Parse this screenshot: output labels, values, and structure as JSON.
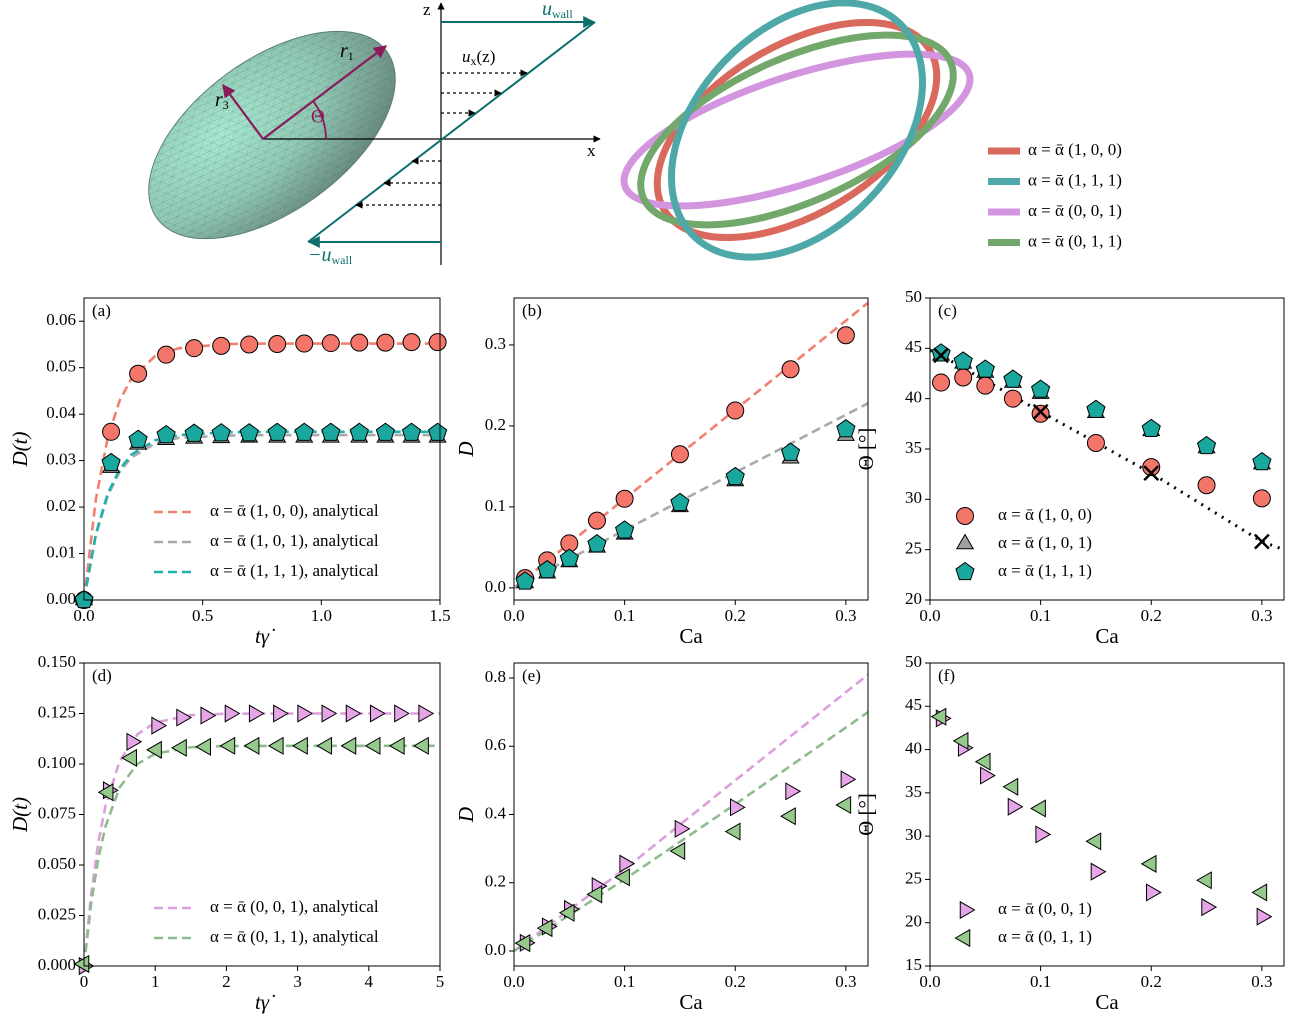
{
  "diagram": {
    "z_axis": "z",
    "x_axis": "x",
    "u_wall": {
      "symbol": "u",
      "subscript": "wall"
    },
    "minus_u_wall": {
      "symbol": "−u",
      "subscript": "wall"
    },
    "u_x": {
      "symbol": "u",
      "subscript": "x",
      "suffix": "(z)"
    },
    "r1": {
      "symbol": "r",
      "subscript": "1"
    },
    "r3": {
      "symbol": "r",
      "subscript": "3"
    },
    "theta": "Θ",
    "legend": [
      {
        "label": "α = ᾱ (1, 0, 0)",
        "color": "#d9695c"
      },
      {
        "label": "α = ᾱ (1, 1, 1)",
        "color": "#4fa8a8"
      },
      {
        "label": "α = ᾱ (0, 0, 1)",
        "color": "#d394e0"
      },
      {
        "label": "α = ᾱ (0, 1, 1)",
        "color": "#72a86c"
      }
    ]
  },
  "chart_data": [
    {
      "type": "scatter",
      "label": "(a)",
      "xlabel": "tγ̇",
      "ylabel": "D(t)",
      "xlim": [
        0,
        1.5
      ],
      "ylim": [
        0,
        0.065
      ],
      "xticks": [
        {
          "value": 0,
          "label": "0.0"
        },
        {
          "value": 0.5,
          "label": "0.5"
        },
        {
          "value": 1,
          "label": "1.0"
        },
        {
          "value": 1.5,
          "label": "1.5"
        }
      ],
      "yticks": [
        {
          "value": 0,
          "label": "0.00"
        },
        {
          "value": 0.01,
          "label": "0.01"
        },
        {
          "value": 0.02,
          "label": "0.02"
        },
        {
          "value": 0.03,
          "label": "0.03"
        },
        {
          "value": 0.04,
          "label": "0.04"
        },
        {
          "value": 0.05,
          "label": "0.05"
        },
        {
          "value": 0.06,
          "label": "0.06"
        }
      ],
      "legend": "lower right",
      "series": [
        {
          "name": "α = ᾱ (1, 0, 0), analytical",
          "style": "dashed",
          "color": "#f08070",
          "x": [
            0,
            0.05,
            0.1,
            0.15,
            0.2,
            0.3,
            0.4,
            0.6,
            0.8,
            1.0,
            1.2,
            1.5
          ],
          "values": [
            0,
            0.0217,
            0.0349,
            0.0429,
            0.0477,
            0.0525,
            0.0542,
            0.0551,
            0.0552,
            0.0552,
            0.0552,
            0.0552
          ]
        },
        {
          "name": "α = ᾱ (1, 0, 1), analytical",
          "style": "dashed",
          "color": "#aaaaaa",
          "x": [
            0,
            0.05,
            0.1,
            0.15,
            0.2,
            0.3,
            0.4,
            0.6,
            0.8,
            1.0,
            1.2,
            1.5
          ],
          "values": [
            0,
            0.014,
            0.0224,
            0.0276,
            0.0307,
            0.0337,
            0.0349,
            0.0354,
            0.0355,
            0.0355,
            0.0355,
            0.0355
          ]
        },
        {
          "name": "α = ᾱ (1, 1, 1), analytical",
          "style": "dashed",
          "color": "#20b2aa",
          "x": [
            0,
            0.05,
            0.1,
            0.15,
            0.2,
            0.3,
            0.4,
            0.6,
            0.8,
            1.0,
            1.2,
            1.5
          ],
          "values": [
            0,
            0.0142,
            0.0229,
            0.0281,
            0.0313,
            0.0344,
            0.0355,
            0.0361,
            0.0362,
            0.0362,
            0.0362,
            0.0362
          ]
        },
        {
          "marker": "circle",
          "color": "#f4766a",
          "x": [
            0,
            0.114,
            0.228,
            0.346,
            0.464,
            0.578,
            0.696,
            0.814,
            0.928,
            1.04,
            1.16,
            1.27,
            1.38,
            1.49
          ],
          "values": [
            0,
            0.0362,
            0.0487,
            0.0528,
            0.0542,
            0.0547,
            0.055,
            0.0551,
            0.0552,
            0.0553,
            0.0554,
            0.0554,
            0.0555,
            0.0555
          ]
        },
        {
          "marker": "triangle",
          "color": "#a0a0a0",
          "x": [
            0,
            0.114,
            0.228,
            0.346,
            0.464,
            0.578,
            0.696,
            0.814,
            0.928,
            1.04,
            1.16,
            1.27,
            1.38,
            1.49
          ],
          "values": [
            0,
            0.0285,
            0.0335,
            0.0345,
            0.0348,
            0.0349,
            0.035,
            0.035,
            0.035,
            0.035,
            0.035,
            0.035,
            0.035,
            0.035
          ]
        },
        {
          "marker": "pentagon",
          "color": "#1aa89e",
          "x": [
            0,
            0.114,
            0.228,
            0.346,
            0.464,
            0.578,
            0.696,
            0.814,
            0.928,
            1.04,
            1.16,
            1.27,
            1.38,
            1.49
          ],
          "values": [
            0,
            0.0295,
            0.0345,
            0.0355,
            0.0358,
            0.0359,
            0.0359,
            0.036,
            0.036,
            0.036,
            0.036,
            0.036,
            0.036,
            0.036
          ]
        }
      ]
    },
    {
      "type": "scatter",
      "label": "(b)",
      "xlabel": "Ca",
      "ylabel": "D",
      "xlim": [
        0,
        0.32
      ],
      "ylim": [
        -0.015,
        0.358
      ],
      "xticks": [
        {
          "value": 0,
          "label": "0.0"
        },
        {
          "value": 0.1,
          "label": "0.1"
        },
        {
          "value": 0.2,
          "label": "0.2"
        },
        {
          "value": 0.3,
          "label": "0.3"
        }
      ],
      "yticks": [
        {
          "value": 0,
          "label": "0.0"
        },
        {
          "value": 0.1,
          "label": "0.1"
        },
        {
          "value": 0.2,
          "label": "0.2"
        },
        {
          "value": 0.3,
          "label": "0.3"
        }
      ],
      "series": [
        {
          "style": "dashed",
          "color": "#f08070",
          "x": [
            0,
            0.32
          ],
          "values": [
            0,
            0.352
          ]
        },
        {
          "style": "dashed",
          "color": "#aaaaaa",
          "x": [
            0,
            0.32
          ],
          "values": [
            0,
            0.228
          ]
        },
        {
          "marker": "circle",
          "color": "#f4766a",
          "x": [
            0.01,
            0.03,
            0.05,
            0.075,
            0.1,
            0.15,
            0.2,
            0.25,
            0.3
          ],
          "values": [
            0.012,
            0.034,
            0.055,
            0.083,
            0.11,
            0.165,
            0.219,
            0.27,
            0.312
          ]
        },
        {
          "marker": "triangle",
          "color": "#a0a0a0",
          "x": [
            0.01,
            0.03,
            0.05,
            0.075,
            0.1,
            0.15,
            0.2,
            0.25,
            0.3
          ],
          "values": [
            0.006,
            0.018,
            0.032,
            0.05,
            0.066,
            0.1,
            0.132,
            0.16,
            0.188
          ]
        },
        {
          "marker": "pentagon",
          "color": "#1aa89e",
          "x": [
            0.01,
            0.03,
            0.05,
            0.075,
            0.1,
            0.15,
            0.2,
            0.25,
            0.3
          ],
          "values": [
            0.008,
            0.022,
            0.036,
            0.054,
            0.071,
            0.105,
            0.137,
            0.167,
            0.196
          ]
        }
      ]
    },
    {
      "type": "scatter",
      "label": "(c)",
      "xlabel": "Ca",
      "ylabel": "Θ [°]",
      "xlim": [
        0,
        0.32
      ],
      "ylim": [
        20,
        50
      ],
      "xticks": [
        {
          "value": 0,
          "label": "0.0"
        },
        {
          "value": 0.1,
          "label": "0.1"
        },
        {
          "value": 0.2,
          "label": "0.2"
        },
        {
          "value": 0.3,
          "label": "0.3"
        }
      ],
      "yticks": [
        20,
        25,
        30,
        35,
        40,
        45,
        50
      ],
      "legend": "lower left",
      "series": [
        {
          "style": "dotted",
          "color": "#000000",
          "x": [
            0,
            0.01,
            0.1,
            0.2,
            0.3,
            0.32
          ],
          "values": [
            44.8,
            44.3,
            38.7,
            32.6,
            25.8,
            25.0
          ]
        },
        {
          "name": "α = ᾱ (1, 0, 0)",
          "marker": "circle",
          "color": "#f4766a",
          "x": [
            0.01,
            0.03,
            0.05,
            0.075,
            0.1,
            0.15,
            0.2,
            0.25,
            0.3
          ],
          "values": [
            41.6,
            42.1,
            41.3,
            40.0,
            38.5,
            35.6,
            33.2,
            31.4,
            30.1
          ]
        },
        {
          "name": "α = ᾱ (1, 0, 1)",
          "marker": "triangle",
          "color": "#a0a0a0",
          "x": [
            0.01,
            0.03,
            0.05,
            0.075,
            0.1,
            0.15,
            0.2,
            0.25,
            0.3
          ],
          "values": [
            44.3,
            43.5,
            42.6,
            41.6,
            40.5,
            38.6,
            36.8,
            35.1,
            33.5
          ]
        },
        {
          "name": "α = ᾱ (1, 1, 1)",
          "marker": "pentagon",
          "color": "#1aa89e",
          "x": [
            0.01,
            0.03,
            0.05,
            0.075,
            0.1,
            0.15,
            0.2,
            0.25,
            0.3
          ],
          "values": [
            44.5,
            43.7,
            42.9,
            41.9,
            40.9,
            38.9,
            37.0,
            35.3,
            33.7
          ]
        },
        {
          "marker": "x",
          "color": "#000000",
          "x": [
            0.01,
            0.1,
            0.2,
            0.3
          ],
          "values": [
            44.3,
            38.7,
            32.6,
            25.8
          ]
        }
      ]
    },
    {
      "type": "scatter",
      "label": "(d)",
      "xlabel": "tγ̇",
      "ylabel": "D(t)",
      "xlim": [
        0,
        5
      ],
      "ylim": [
        0,
        0.15
      ],
      "xticks": [
        0,
        1,
        2,
        3,
        4,
        5
      ],
      "yticks": [
        {
          "value": 0,
          "label": "0.000"
        },
        {
          "value": 0.025,
          "label": "0.025"
        },
        {
          "value": 0.05,
          "label": "0.050"
        },
        {
          "value": 0.075,
          "label": "0.075"
        },
        {
          "value": 0.1,
          "label": "0.100"
        },
        {
          "value": 0.125,
          "label": "0.125"
        },
        {
          "value": 0.15,
          "label": "0.150"
        }
      ],
      "legend": "lower right",
      "series": [
        {
          "name": "α = ᾱ (0, 0, 1), analytical",
          "style": "dashed",
          "color": "#dda0dd",
          "x": [
            0,
            0.1,
            0.2,
            0.3,
            0.5,
            0.75,
            1,
            1.5,
            2,
            3,
            5
          ],
          "values": [
            0,
            0.0354,
            0.0609,
            0.079,
            0.1014,
            0.1147,
            0.1205,
            0.1242,
            0.1249,
            0.125,
            0.125
          ]
        },
        {
          "name": "α = ᾱ (0, 1, 1), analytical",
          "style": "dashed",
          "color": "#8fbc8f",
          "x": [
            0,
            0.1,
            0.2,
            0.3,
            0.5,
            0.75,
            1,
            1.5,
            2,
            3,
            5
          ],
          "values": [
            0,
            0.0309,
            0.0531,
            0.0689,
            0.0884,
            0.1,
            0.1051,
            0.1083,
            0.1089,
            0.109,
            0.109
          ]
        },
        {
          "marker": "triangle-right",
          "color": "#e5a5e8",
          "x": [
            0,
            0.34,
            0.67,
            1.02,
            1.37,
            1.71,
            2.05,
            2.39,
            2.73,
            3.07,
            3.41,
            3.75,
            4.09,
            4.43,
            4.77
          ],
          "values": [
            0,
            0.087,
            0.111,
            0.119,
            0.123,
            0.124,
            0.125,
            0.125,
            0.125,
            0.125,
            0.125,
            0.125,
            0.125,
            0.125,
            0.125
          ]
        },
        {
          "marker": "triangle-left",
          "color": "#96c98c",
          "x": [
            0,
            0.34,
            0.67,
            1.02,
            1.37,
            1.71,
            2.05,
            2.39,
            2.73,
            3.07,
            3.41,
            3.75,
            4.09,
            4.43,
            4.77
          ],
          "values": [
            0.001,
            0.086,
            0.103,
            0.107,
            0.108,
            0.1085,
            0.109,
            0.109,
            0.109,
            0.109,
            0.109,
            0.109,
            0.109,
            0.109,
            0.109
          ]
        }
      ]
    },
    {
      "type": "scatter",
      "label": "(e)",
      "xlabel": "Ca",
      "ylabel": "D",
      "xlim": [
        0,
        0.32
      ],
      "ylim": [
        -0.044,
        0.844
      ],
      "xticks": [
        {
          "value": 0,
          "label": "0.0"
        },
        {
          "value": 0.1,
          "label": "0.1"
        },
        {
          "value": 0.2,
          "label": "0.2"
        },
        {
          "value": 0.3,
          "label": "0.3"
        }
      ],
      "yticks": [
        {
          "value": 0,
          "label": "0.0"
        },
        {
          "value": 0.2,
          "label": "0.2"
        },
        {
          "value": 0.4,
          "label": "0.4"
        },
        {
          "value": 0.6,
          "label": "0.6"
        },
        {
          "value": 0.8,
          "label": "0.8"
        }
      ],
      "series": [
        {
          "style": "dashed",
          "color": "#dda0dd",
          "x": [
            0,
            0.1,
            0.2,
            0.32
          ],
          "values": [
            0,
            0.24,
            0.5,
            0.81
          ]
        },
        {
          "style": "dashed",
          "color": "#8fbc8f",
          "x": [
            0,
            0.1,
            0.2,
            0.32
          ],
          "values": [
            0,
            0.21,
            0.43,
            0.7
          ]
        },
        {
          "marker": "triangle-right",
          "color": "#e5a5e8",
          "x": [
            0.01,
            0.03,
            0.05,
            0.075,
            0.1,
            0.15,
            0.2,
            0.25,
            0.3
          ],
          "values": [
            0.024,
            0.072,
            0.123,
            0.19,
            0.256,
            0.358,
            0.421,
            0.468,
            0.503
          ]
        },
        {
          "marker": "triangle-left",
          "color": "#96c98c",
          "x": [
            0.01,
            0.03,
            0.05,
            0.075,
            0.1,
            0.15,
            0.2,
            0.25,
            0.3
          ],
          "values": [
            0.023,
            0.067,
            0.112,
            0.166,
            0.216,
            0.293,
            0.35,
            0.395,
            0.428
          ]
        }
      ]
    },
    {
      "type": "scatter",
      "label": "(f)",
      "xlabel": "Ca",
      "ylabel": "Θ [°]",
      "xlim": [
        0,
        0.32
      ],
      "ylim": [
        15,
        50
      ],
      "xticks": [
        {
          "value": 0,
          "label": "0.0"
        },
        {
          "value": 0.1,
          "label": "0.1"
        },
        {
          "value": 0.2,
          "label": "0.2"
        },
        {
          "value": 0.3,
          "label": "0.3"
        }
      ],
      "yticks": [
        15,
        20,
        25,
        30,
        35,
        40,
        45,
        50
      ],
      "legend": "lower left",
      "series": [
        {
          "name": "α = ᾱ (0, 0, 1)",
          "marker": "triangle-right",
          "color": "#e5a5e8",
          "x": [
            0.01,
            0.03,
            0.05,
            0.075,
            0.1,
            0.15,
            0.2,
            0.25,
            0.3
          ],
          "values": [
            43.6,
            40.2,
            37.0,
            33.4,
            30.2,
            25.9,
            23.5,
            21.8,
            20.7
          ]
        },
        {
          "name": "α = ᾱ (0, 1, 1)",
          "marker": "triangle-left",
          "color": "#96c98c",
          "x": [
            0.01,
            0.03,
            0.05,
            0.075,
            0.1,
            0.15,
            0.2,
            0.25,
            0.3
          ],
          "values": [
            43.8,
            41.0,
            38.6,
            35.7,
            33.2,
            29.4,
            26.8,
            24.9,
            23.5
          ]
        }
      ]
    }
  ]
}
